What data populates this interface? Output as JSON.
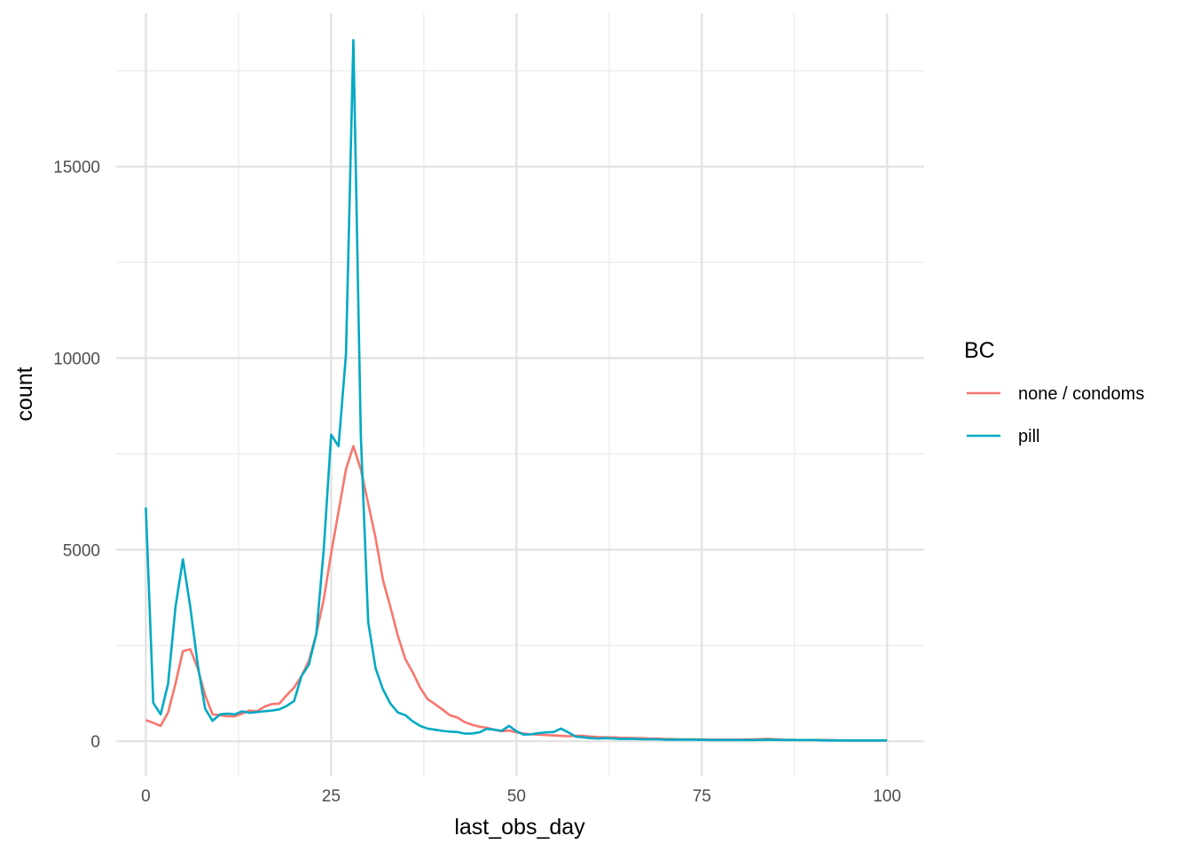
{
  "chart_data": {
    "type": "line",
    "title": "",
    "xlabel": "last_obs_day",
    "ylabel": "count",
    "xlim": [
      -4,
      105
    ],
    "ylim": [
      -900,
      19000
    ],
    "x_ticks": [
      0,
      25,
      50,
      75,
      100
    ],
    "x_minor_ticks": [
      12.5,
      37.5,
      62.5,
      87.5
    ],
    "y_ticks": [
      0,
      5000,
      10000,
      15000
    ],
    "y_minor_ticks": [
      2500,
      7500,
      12500,
      17500
    ],
    "grid": true,
    "legend": {
      "title": "BC",
      "position": "right"
    },
    "series": [
      {
        "name": "none / condoms",
        "color": "#F8766D",
        "points": [
          [
            0,
            550
          ],
          [
            1,
            480
          ],
          [
            2,
            400
          ],
          [
            3,
            750
          ],
          [
            4,
            1500
          ],
          [
            5,
            2350
          ],
          [
            6,
            2400
          ],
          [
            7,
            1900
          ],
          [
            8,
            1200
          ],
          [
            9,
            700
          ],
          [
            10,
            680
          ],
          [
            11,
            650
          ],
          [
            12,
            650
          ],
          [
            13,
            720
          ],
          [
            14,
            800
          ],
          [
            15,
            780
          ],
          [
            16,
            900
          ],
          [
            17,
            970
          ],
          [
            18,
            980
          ],
          [
            19,
            1200
          ],
          [
            20,
            1400
          ],
          [
            21,
            1700
          ],
          [
            22,
            2100
          ],
          [
            23,
            2800
          ],
          [
            24,
            3700
          ],
          [
            25,
            4900
          ],
          [
            26,
            6000
          ],
          [
            27,
            7100
          ],
          [
            28,
            7700
          ],
          [
            29,
            7100
          ],
          [
            30,
            6200
          ],
          [
            31,
            5300
          ],
          [
            32,
            4200
          ],
          [
            33,
            3500
          ],
          [
            34,
            2750
          ],
          [
            35,
            2150
          ],
          [
            36,
            1800
          ],
          [
            37,
            1400
          ],
          [
            38,
            1100
          ],
          [
            39,
            970
          ],
          [
            40,
            830
          ],
          [
            41,
            680
          ],
          [
            42,
            620
          ],
          [
            43,
            500
          ],
          [
            44,
            430
          ],
          [
            45,
            380
          ],
          [
            46,
            350
          ],
          [
            47,
            300
          ],
          [
            48,
            260
          ],
          [
            49,
            280
          ],
          [
            50,
            230
          ],
          [
            51,
            200
          ],
          [
            52,
            180
          ],
          [
            53,
            170
          ],
          [
            54,
            160
          ],
          [
            55,
            150
          ],
          [
            56,
            140
          ],
          [
            57,
            130
          ],
          [
            58,
            140
          ],
          [
            59,
            140
          ],
          [
            60,
            120
          ],
          [
            61,
            110
          ],
          [
            62,
            100
          ],
          [
            63,
            100
          ],
          [
            64,
            90
          ],
          [
            65,
            90
          ],
          [
            66,
            80
          ],
          [
            67,
            80
          ],
          [
            68,
            70
          ],
          [
            69,
            70
          ],
          [
            70,
            60
          ],
          [
            72,
            50
          ],
          [
            74,
            50
          ],
          [
            76,
            40
          ],
          [
            78,
            40
          ],
          [
            80,
            40
          ],
          [
            82,
            50
          ],
          [
            84,
            60
          ],
          [
            86,
            40
          ],
          [
            88,
            30
          ],
          [
            90,
            30
          ],
          [
            92,
            30
          ],
          [
            94,
            20
          ],
          [
            96,
            20
          ],
          [
            98,
            20
          ],
          [
            100,
            20
          ]
        ]
      },
      {
        "name": "pill",
        "color": "#00A9C3",
        "points": [
          [
            0,
            6100
          ],
          [
            1,
            1000
          ],
          [
            2,
            700
          ],
          [
            3,
            1500
          ],
          [
            4,
            3500
          ],
          [
            5,
            4750
          ],
          [
            6,
            3500
          ],
          [
            7,
            2000
          ],
          [
            8,
            850
          ],
          [
            9,
            530
          ],
          [
            10,
            700
          ],
          [
            11,
            720
          ],
          [
            12,
            700
          ],
          [
            13,
            780
          ],
          [
            14,
            740
          ],
          [
            15,
            760
          ],
          [
            16,
            780
          ],
          [
            17,
            800
          ],
          [
            18,
            830
          ],
          [
            19,
            920
          ],
          [
            20,
            1050
          ],
          [
            21,
            1700
          ],
          [
            22,
            2000
          ],
          [
            23,
            2800
          ],
          [
            24,
            5000
          ],
          [
            25,
            8000
          ],
          [
            26,
            7700
          ],
          [
            27,
            10100
          ],
          [
            28,
            18300
          ],
          [
            29,
            8000
          ],
          [
            30,
            3100
          ],
          [
            31,
            1900
          ],
          [
            32,
            1350
          ],
          [
            33,
            980
          ],
          [
            34,
            750
          ],
          [
            35,
            680
          ],
          [
            36,
            520
          ],
          [
            37,
            400
          ],
          [
            38,
            330
          ],
          [
            39,
            300
          ],
          [
            40,
            270
          ],
          [
            41,
            250
          ],
          [
            42,
            240
          ],
          [
            43,
            200
          ],
          [
            44,
            200
          ],
          [
            45,
            230
          ],
          [
            46,
            320
          ],
          [
            47,
            300
          ],
          [
            48,
            270
          ],
          [
            49,
            400
          ],
          [
            50,
            260
          ],
          [
            51,
            170
          ],
          [
            52,
            180
          ],
          [
            53,
            210
          ],
          [
            54,
            230
          ],
          [
            55,
            240
          ],
          [
            56,
            330
          ],
          [
            57,
            230
          ],
          [
            58,
            120
          ],
          [
            59,
            100
          ],
          [
            60,
            80
          ],
          [
            61,
            70
          ],
          [
            62,
            80
          ],
          [
            63,
            70
          ],
          [
            64,
            60
          ],
          [
            65,
            60
          ],
          [
            66,
            60
          ],
          [
            67,
            50
          ],
          [
            68,
            50
          ],
          [
            69,
            50
          ],
          [
            70,
            40
          ],
          [
            72,
            40
          ],
          [
            74,
            40
          ],
          [
            76,
            30
          ],
          [
            78,
            30
          ],
          [
            80,
            30
          ],
          [
            82,
            30
          ],
          [
            84,
            40
          ],
          [
            86,
            30
          ],
          [
            88,
            30
          ],
          [
            90,
            30
          ],
          [
            92,
            20
          ],
          [
            94,
            20
          ],
          [
            96,
            20
          ],
          [
            98,
            20
          ],
          [
            100,
            20
          ]
        ]
      }
    ]
  }
}
